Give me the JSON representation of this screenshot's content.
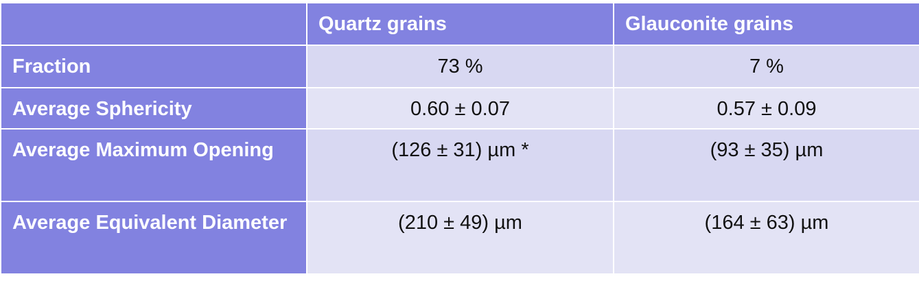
{
  "table": {
    "headers": [
      "",
      "Quartz grains",
      "Glauconite grains"
    ],
    "rows": [
      {
        "label": "Fraction",
        "values": [
          "73 %",
          "7 %"
        ]
      },
      {
        "label": "Average Sphericity",
        "values": [
          "0.60 ± 0.07",
          "0.57 ± 0.09"
        ]
      },
      {
        "label": "Average Maximum Opening",
        "values": [
          "(126 ± 31) µm *",
          "(93 ± 35) µm"
        ]
      },
      {
        "label": "Average Equivalent Diameter",
        "values": [
          "(210 ± 49) µm",
          "(164 ± 63) µm"
        ]
      }
    ]
  },
  "colors": {
    "header_bg": "#8282e0",
    "row_even_bg": "#e3e3f5",
    "row_odd_bg": "#d8d8f2",
    "header_text": "#ffffff"
  }
}
